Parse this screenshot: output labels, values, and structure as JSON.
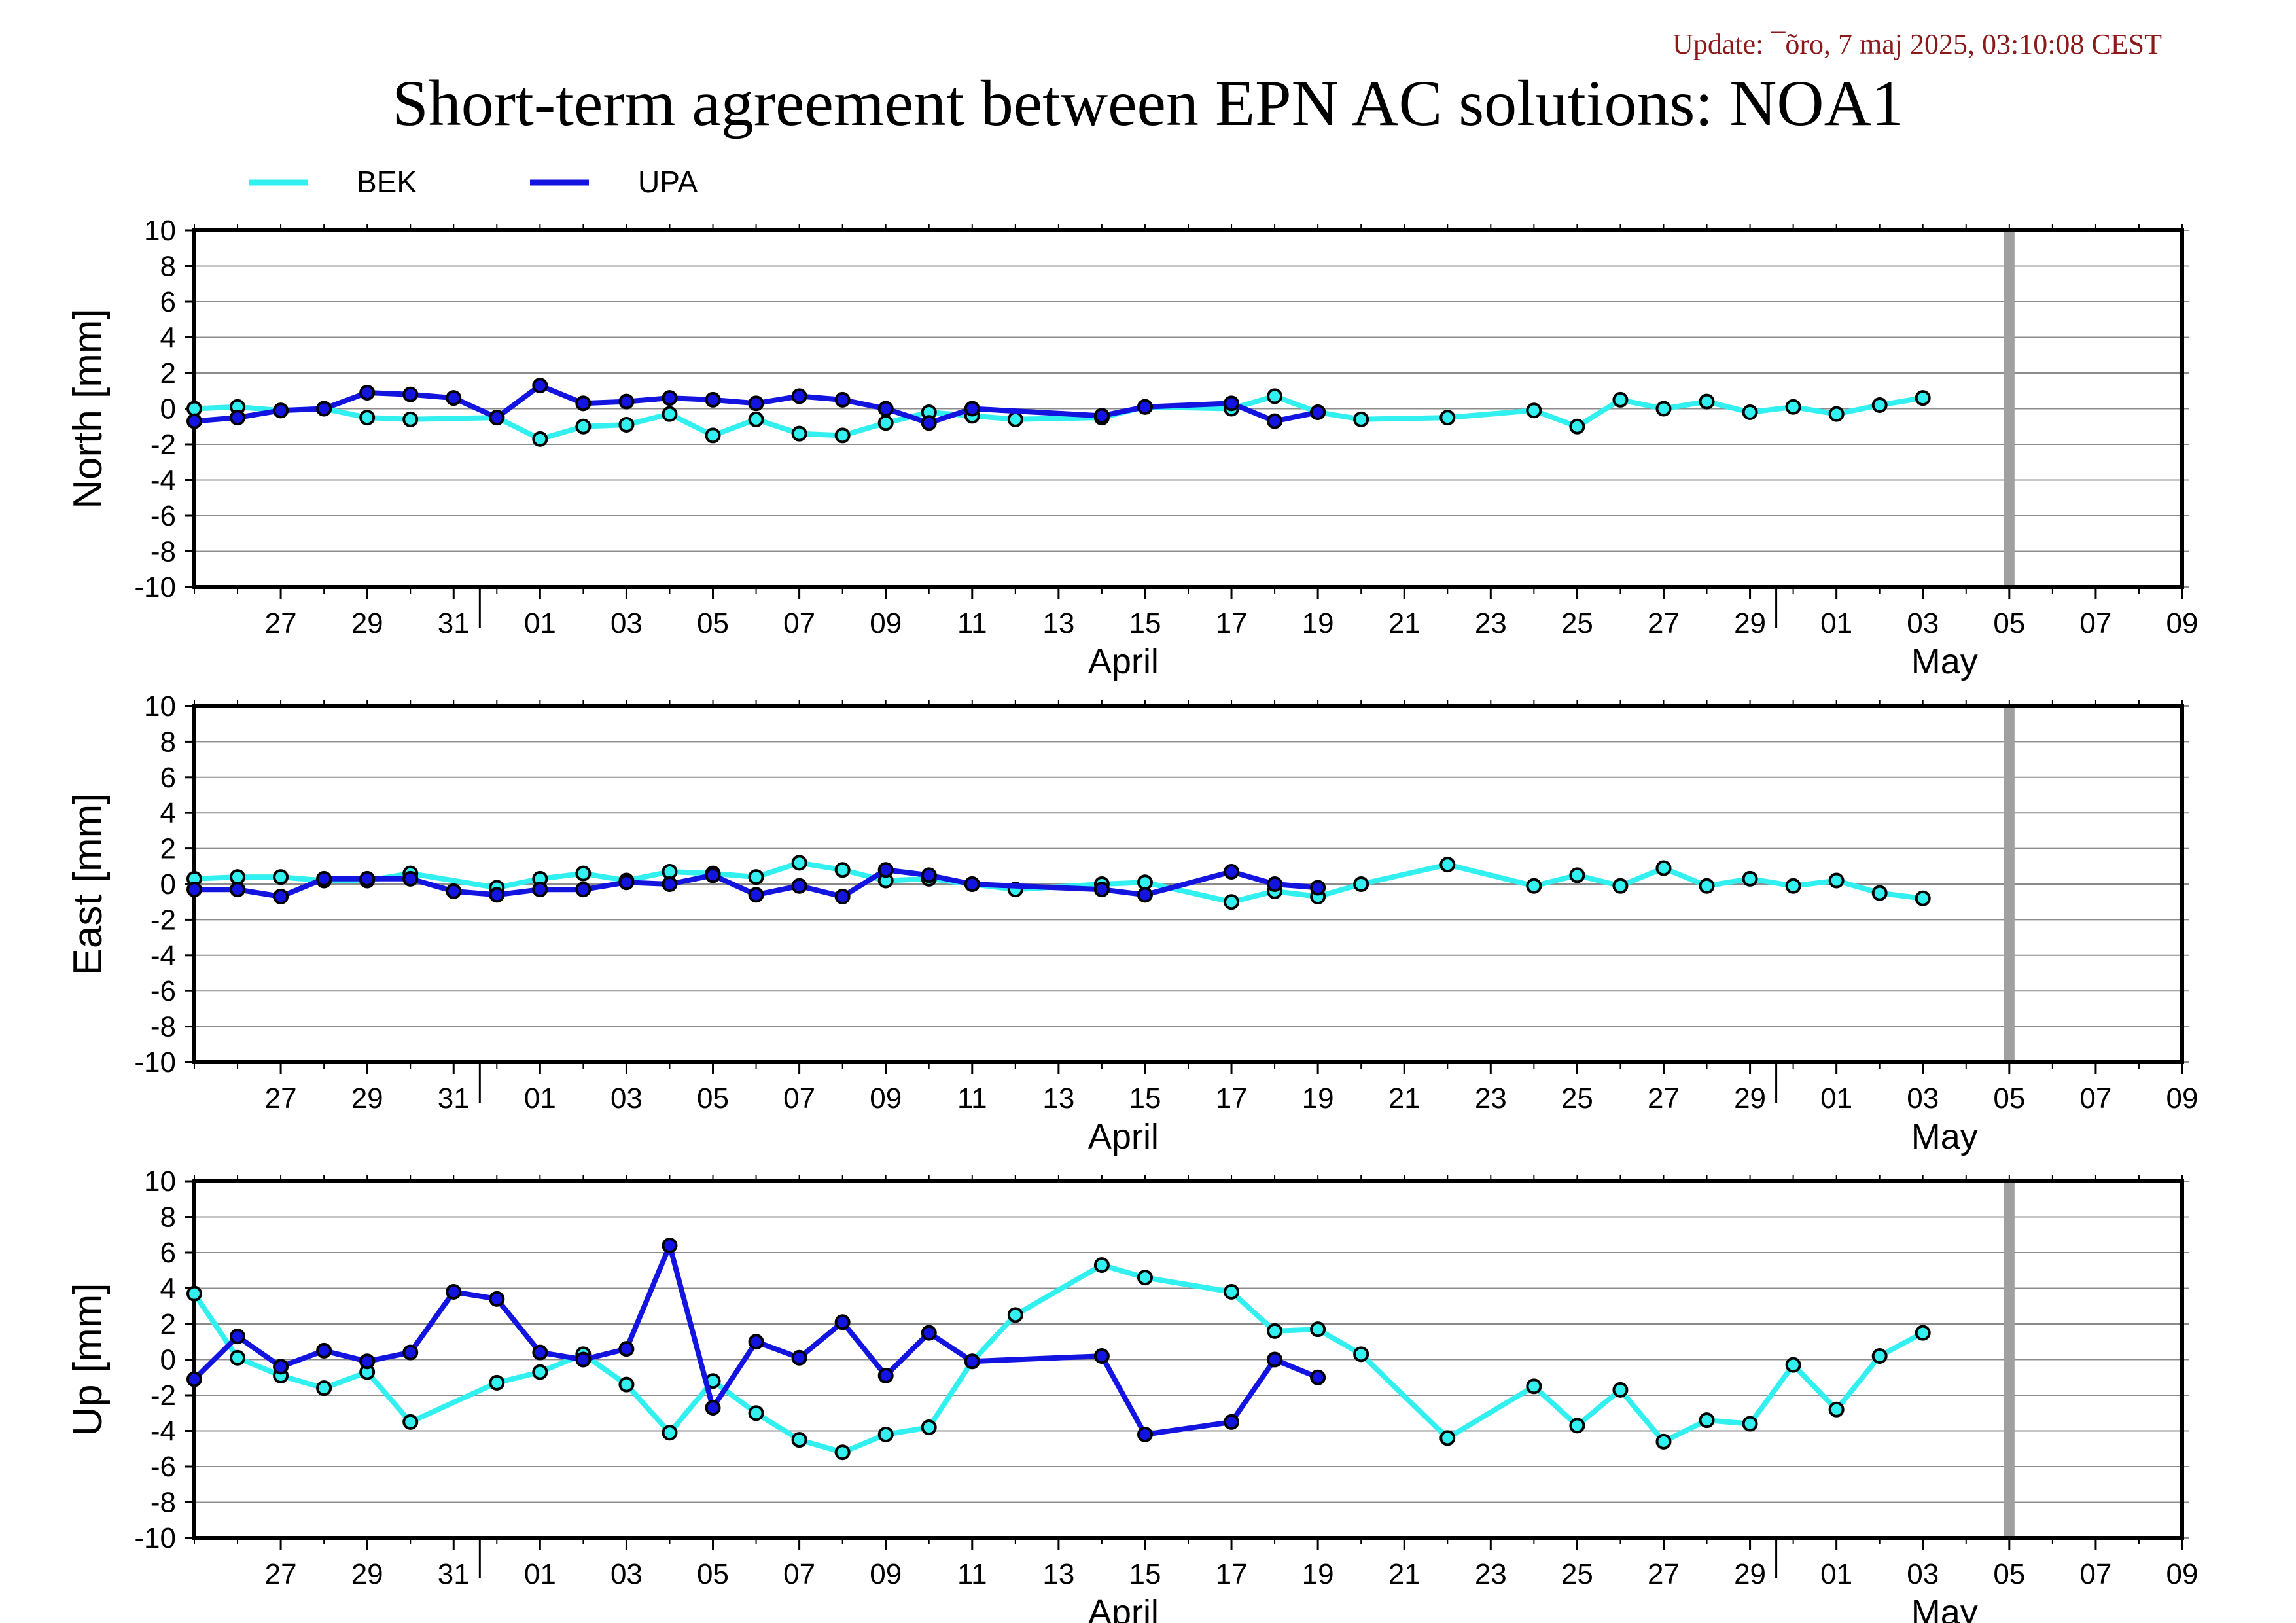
{
  "header": {
    "update": "Update: ¯õro, 7 maj 2025, 03:10:08 CEST",
    "title": "Short-term agreement between EPN AC solutions: NOA1"
  },
  "colors": {
    "BEK": "#33f0f0",
    "UPA": "#1414e0",
    "now_marker": "#a0a0a0"
  },
  "chart_data": [
    {
      "type": "line",
      "ylabel": "North [mm]",
      "ylim": [
        -10,
        10
      ],
      "yticks": [
        10,
        8,
        6,
        4,
        2,
        0,
        -2,
        -4,
        -6,
        -8,
        -10
      ],
      "xlim": [
        "2025-03-25",
        "2025-05-10"
      ],
      "xtick_labels": [
        "27",
        "29",
        "31",
        "01",
        "03",
        "05",
        "07",
        "09",
        "11",
        "13",
        "15",
        "17",
        "19",
        "21",
        "23",
        "25",
        "27",
        "29",
        "01",
        "03",
        "05",
        "07",
        "09"
      ],
      "months": [
        "April",
        "May"
      ],
      "now_marker": "2025-05-06",
      "grid": true,
      "legend": "top-left",
      "series": [
        {
          "name": "BEK",
          "color": "#33f0f0",
          "points": [
            [
              "2025-03-25",
              0.0
            ],
            [
              "2025-03-26",
              0.1
            ],
            [
              "2025-03-27",
              -0.1
            ],
            [
              "2025-03-28",
              0.0
            ],
            [
              "2025-03-29",
              -0.5
            ],
            [
              "2025-03-30",
              -0.6
            ],
            [
              "2025-04-01",
              -0.5
            ],
            [
              "2025-04-02",
              -1.7
            ],
            [
              "2025-04-03",
              -1.0
            ],
            [
              "2025-04-04",
              -0.9
            ],
            [
              "2025-04-05",
              -0.3
            ],
            [
              "2025-04-06",
              -1.5
            ],
            [
              "2025-04-07",
              -0.6
            ],
            [
              "2025-04-08",
              -1.4
            ],
            [
              "2025-04-09",
              -1.5
            ],
            [
              "2025-04-10",
              -0.8
            ],
            [
              "2025-04-11",
              -0.2
            ],
            [
              "2025-04-12",
              -0.4
            ],
            [
              "2025-04-13",
              -0.6
            ],
            [
              "2025-04-15",
              -0.5
            ],
            [
              "2025-04-16",
              0.1
            ],
            [
              "2025-04-18",
              0.0
            ],
            [
              "2025-04-19",
              0.7
            ],
            [
              "2025-04-20",
              -0.2
            ],
            [
              "2025-04-21",
              -0.6
            ],
            [
              "2025-04-23",
              -0.5
            ],
            [
              "2025-04-25",
              -0.1
            ],
            [
              "2025-04-26",
              -1.0
            ],
            [
              "2025-04-27",
              0.5
            ],
            [
              "2025-04-28",
              0.0
            ],
            [
              "2025-04-29",
              0.4
            ],
            [
              "2025-04-30",
              -0.2
            ],
            [
              "2025-05-01",
              0.1
            ],
            [
              "2025-05-02",
              -0.3
            ],
            [
              "2025-05-03",
              0.2
            ],
            [
              "2025-05-04",
              0.6
            ]
          ]
        },
        {
          "name": "UPA",
          "color": "#1414e0",
          "points": [
            [
              "2025-03-25",
              -0.7
            ],
            [
              "2025-03-26",
              -0.5
            ],
            [
              "2025-03-27",
              -0.1
            ],
            [
              "2025-03-28",
              0.0
            ],
            [
              "2025-03-29",
              0.9
            ],
            [
              "2025-03-30",
              0.8
            ],
            [
              "2025-03-31",
              0.6
            ],
            [
              "2025-04-01",
              -0.5
            ],
            [
              "2025-04-02",
              1.3
            ],
            [
              "2025-04-03",
              0.3
            ],
            [
              "2025-04-04",
              0.4
            ],
            [
              "2025-04-05",
              0.6
            ],
            [
              "2025-04-06",
              0.5
            ],
            [
              "2025-04-07",
              0.3
            ],
            [
              "2025-04-08",
              0.7
            ],
            [
              "2025-04-09",
              0.5
            ],
            [
              "2025-04-10",
              0.0
            ],
            [
              "2025-04-11",
              -0.8
            ],
            [
              "2025-04-12",
              0.0
            ],
            [
              "2025-04-15",
              -0.4
            ],
            [
              "2025-04-16",
              0.1
            ],
            [
              "2025-04-18",
              0.3
            ],
            [
              "2025-04-19",
              -0.7
            ],
            [
              "2025-04-20",
              -0.2
            ]
          ]
        }
      ]
    },
    {
      "type": "line",
      "ylabel": "East [mm]",
      "ylim": [
        -10,
        10
      ],
      "yticks": [
        10,
        8,
        6,
        4,
        2,
        0,
        -2,
        -4,
        -6,
        -8,
        -10
      ],
      "xlim": [
        "2025-03-25",
        "2025-05-10"
      ],
      "xtick_labels": [
        "27",
        "29",
        "31",
        "01",
        "03",
        "05",
        "07",
        "09",
        "11",
        "13",
        "15",
        "17",
        "19",
        "21",
        "23",
        "25",
        "27",
        "29",
        "01",
        "03",
        "05",
        "07",
        "09"
      ],
      "months": [
        "April",
        "May"
      ],
      "now_marker": "2025-05-06",
      "grid": true,
      "series": [
        {
          "name": "BEK",
          "color": "#33f0f0",
          "points": [
            [
              "2025-03-25",
              0.3
            ],
            [
              "2025-03-26",
              0.4
            ],
            [
              "2025-03-27",
              0.4
            ],
            [
              "2025-03-28",
              0.2
            ],
            [
              "2025-03-29",
              0.2
            ],
            [
              "2025-03-30",
              0.6
            ],
            [
              "2025-04-01",
              -0.2
            ],
            [
              "2025-04-02",
              0.3
            ],
            [
              "2025-04-03",
              0.6
            ],
            [
              "2025-04-04",
              0.2
            ],
            [
              "2025-04-05",
              0.7
            ],
            [
              "2025-04-06",
              0.6
            ],
            [
              "2025-04-07",
              0.4
            ],
            [
              "2025-04-08",
              1.2
            ],
            [
              "2025-04-09",
              0.8
            ],
            [
              "2025-04-10",
              0.2
            ],
            [
              "2025-04-11",
              0.3
            ],
            [
              "2025-04-12",
              0.0
            ],
            [
              "2025-04-13",
              -0.3
            ],
            [
              "2025-04-15",
              0.0
            ],
            [
              "2025-04-16",
              0.1
            ],
            [
              "2025-04-18",
              -1.0
            ],
            [
              "2025-04-19",
              -0.4
            ],
            [
              "2025-04-20",
              -0.7
            ],
            [
              "2025-04-21",
              0.0
            ],
            [
              "2025-04-23",
              1.1
            ],
            [
              "2025-04-25",
              -0.1
            ],
            [
              "2025-04-26",
              0.5
            ],
            [
              "2025-04-27",
              -0.1
            ],
            [
              "2025-04-28",
              0.9
            ],
            [
              "2025-04-29",
              -0.1
            ],
            [
              "2025-04-30",
              0.3
            ],
            [
              "2025-05-01",
              -0.1
            ],
            [
              "2025-05-02",
              0.2
            ],
            [
              "2025-05-03",
              -0.5
            ],
            [
              "2025-05-04",
              -0.8
            ]
          ]
        },
        {
          "name": "UPA",
          "color": "#1414e0",
          "points": [
            [
              "2025-03-25",
              -0.3
            ],
            [
              "2025-03-26",
              -0.3
            ],
            [
              "2025-03-27",
              -0.7
            ],
            [
              "2025-03-28",
              0.3
            ],
            [
              "2025-03-29",
              0.3
            ],
            [
              "2025-03-30",
              0.3
            ],
            [
              "2025-03-31",
              -0.4
            ],
            [
              "2025-04-01",
              -0.6
            ],
            [
              "2025-04-02",
              -0.3
            ],
            [
              "2025-04-03",
              -0.3
            ],
            [
              "2025-04-04",
              0.1
            ],
            [
              "2025-04-05",
              0.0
            ],
            [
              "2025-04-06",
              0.5
            ],
            [
              "2025-04-07",
              -0.6
            ],
            [
              "2025-04-08",
              -0.1
            ],
            [
              "2025-04-09",
              -0.7
            ],
            [
              "2025-04-10",
              0.8
            ],
            [
              "2025-04-11",
              0.5
            ],
            [
              "2025-04-12",
              0.0
            ],
            [
              "2025-04-15",
              -0.3
            ],
            [
              "2025-04-16",
              -0.6
            ],
            [
              "2025-04-18",
              0.7
            ],
            [
              "2025-04-19",
              0.0
            ],
            [
              "2025-04-20",
              -0.2
            ]
          ]
        }
      ]
    },
    {
      "type": "line",
      "ylabel": "Up [mm]",
      "ylim": [
        -10,
        10
      ],
      "yticks": [
        10,
        8,
        6,
        4,
        2,
        0,
        -2,
        -4,
        -6,
        -8,
        -10
      ],
      "xlim": [
        "2025-03-25",
        "2025-05-10"
      ],
      "xtick_labels": [
        "27",
        "29",
        "31",
        "01",
        "03",
        "05",
        "07",
        "09",
        "11",
        "13",
        "15",
        "17",
        "19",
        "21",
        "23",
        "25",
        "27",
        "29",
        "01",
        "03",
        "05",
        "07",
        "09"
      ],
      "months": [
        "April",
        "May"
      ],
      "now_marker": "2025-05-06",
      "grid": true,
      "series": [
        {
          "name": "BEK",
          "color": "#33f0f0",
          "points": [
            [
              "2025-03-25",
              3.7
            ],
            [
              "2025-03-26",
              0.1
            ],
            [
              "2025-03-27",
              -0.9
            ],
            [
              "2025-03-28",
              -1.6
            ],
            [
              "2025-03-29",
              -0.7
            ],
            [
              "2025-03-30",
              -3.5
            ],
            [
              "2025-04-01",
              -1.3
            ],
            [
              "2025-04-02",
              -0.7
            ],
            [
              "2025-04-03",
              0.3
            ],
            [
              "2025-04-04",
              -1.4
            ],
            [
              "2025-04-05",
              -4.1
            ],
            [
              "2025-04-06",
              -1.2
            ],
            [
              "2025-04-07",
              -3.0
            ],
            [
              "2025-04-08",
              -4.5
            ],
            [
              "2025-04-09",
              -5.2
            ],
            [
              "2025-04-10",
              -4.2
            ],
            [
              "2025-04-11",
              -3.8
            ],
            [
              "2025-04-12",
              -0.1
            ],
            [
              "2025-04-13",
              2.5
            ],
            [
              "2025-04-15",
              5.3
            ],
            [
              "2025-04-16",
              4.6
            ],
            [
              "2025-04-18",
              3.8
            ],
            [
              "2025-04-19",
              1.6
            ],
            [
              "2025-04-20",
              1.7
            ],
            [
              "2025-04-21",
              0.3
            ],
            [
              "2025-04-23",
              -4.4
            ],
            [
              "2025-04-25",
              -1.5
            ],
            [
              "2025-04-26",
              -3.7
            ],
            [
              "2025-04-27",
              -1.7
            ],
            [
              "2025-04-28",
              -4.6
            ],
            [
              "2025-04-29",
              -3.4
            ],
            [
              "2025-04-30",
              -3.6
            ],
            [
              "2025-05-01",
              -0.3
            ],
            [
              "2025-05-02",
              -2.8
            ],
            [
              "2025-05-03",
              0.2
            ],
            [
              "2025-05-04",
              1.5
            ]
          ]
        },
        {
          "name": "UPA",
          "color": "#1414e0",
          "points": [
            [
              "2025-03-25",
              -1.1
            ],
            [
              "2025-03-26",
              1.3
            ],
            [
              "2025-03-27",
              -0.4
            ],
            [
              "2025-03-28",
              0.5
            ],
            [
              "2025-03-29",
              -0.1
            ],
            [
              "2025-03-30",
              0.4
            ],
            [
              "2025-03-31",
              3.8
            ],
            [
              "2025-04-01",
              3.4
            ],
            [
              "2025-04-02",
              0.4
            ],
            [
              "2025-04-03",
              0.0
            ],
            [
              "2025-04-04",
              0.6
            ],
            [
              "2025-04-05",
              6.4
            ],
            [
              "2025-04-06",
              -2.7
            ],
            [
              "2025-04-07",
              1.0
            ],
            [
              "2025-04-08",
              0.1
            ],
            [
              "2025-04-09",
              2.1
            ],
            [
              "2025-04-10",
              -0.9
            ],
            [
              "2025-04-11",
              1.5
            ],
            [
              "2025-04-12",
              -0.1
            ],
            [
              "2025-04-15",
              0.2
            ],
            [
              "2025-04-16",
              -4.2
            ],
            [
              "2025-04-18",
              -3.5
            ],
            [
              "2025-04-19",
              0.0
            ],
            [
              "2025-04-20",
              -1.0
            ]
          ]
        }
      ]
    }
  ]
}
